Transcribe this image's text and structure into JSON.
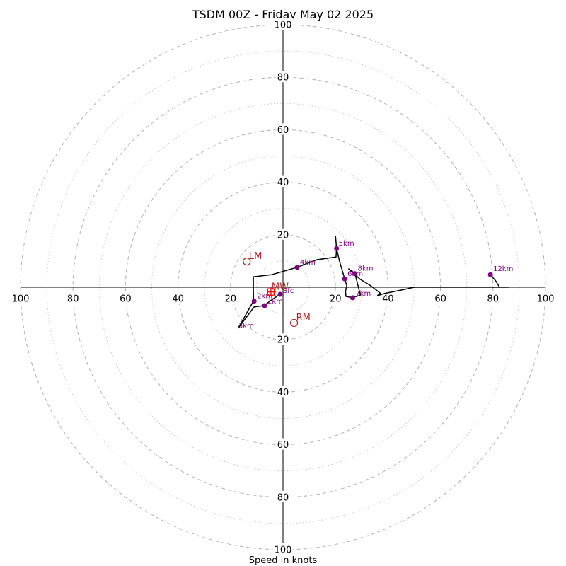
{
  "chart_data": {
    "type": "scatter",
    "title": "TSDM 00Z - Friday May 02 2025",
    "xlabel": "Speed in knots",
    "ylabel": "",
    "xlim": [
      -100,
      100
    ],
    "ylim": [
      -100,
      100
    ],
    "rings": {
      "dashed": [
        20,
        40,
        60,
        80,
        100
      ],
      "dotted": [
        10,
        30,
        50,
        70,
        90
      ]
    },
    "ticks": {
      "x": [
        {
          "v": -100,
          "label": "100"
        },
        {
          "v": -80,
          "label": "80"
        },
        {
          "v": -60,
          "label": "60"
        },
        {
          "v": -40,
          "label": "40"
        },
        {
          "v": -20,
          "label": "20"
        },
        {
          "v": 20,
          "label": "20"
        },
        {
          "v": 40,
          "label": "40"
        },
        {
          "v": 60,
          "label": "60"
        },
        {
          "v": 80,
          "label": "80"
        },
        {
          "v": 100,
          "label": "100"
        }
      ],
      "y": [
        {
          "v": 100,
          "label": "100"
        },
        {
          "v": 80,
          "label": "80"
        },
        {
          "v": 60,
          "label": "60"
        },
        {
          "v": 40,
          "label": "40"
        },
        {
          "v": 20,
          "label": "20"
        },
        {
          "v": -20,
          "label": "20"
        },
        {
          "v": -40,
          "label": "40"
        },
        {
          "v": -60,
          "label": "60"
        },
        {
          "v": -80,
          "label": "80"
        },
        {
          "v": -100,
          "label": "100"
        }
      ]
    },
    "hodograph": [
      [
        -1.1,
        -2.7
      ],
      [
        -4.3,
        -4.8
      ],
      [
        -7.2,
        -7.0
      ],
      [
        -11.0,
        -7.5
      ],
      [
        -17.0,
        -15.5
      ],
      [
        -11.2,
        -5.2
      ],
      [
        -11.3,
        -1.0
      ],
      [
        -11.3,
        4.0
      ],
      [
        -4.3,
        4.8
      ],
      [
        5.4,
        7.6
      ],
      [
        13.0,
        10.5
      ],
      [
        20.2,
        11.5
      ],
      [
        20.4,
        14.8
      ],
      [
        20.0,
        19.5
      ],
      [
        20.4,
        14.8
      ],
      [
        21.5,
        10.0
      ],
      [
        23.5,
        3.2
      ],
      [
        24.3,
        0.5
      ],
      [
        23.8,
        -1.5
      ],
      [
        24.0,
        -3.5
      ],
      [
        26.5,
        -4.0
      ],
      [
        29.5,
        -3.0
      ],
      [
        27.4,
        5.2
      ],
      [
        25.0,
        7.0
      ],
      [
        29.5,
        3.0
      ],
      [
        33.5,
        0.5
      ],
      [
        37.0,
        -2.2
      ],
      [
        36.0,
        -3.2
      ],
      [
        39.0,
        -2.3
      ],
      [
        43.0,
        -1.5
      ],
      [
        50.0,
        0.0
      ],
      [
        62.0,
        0.0
      ],
      [
        75.0,
        0.0
      ],
      [
        83.0,
        0.0
      ],
      [
        86.0,
        0.0
      ],
      [
        82.5,
        0.0
      ],
      [
        81.0,
        2.5
      ],
      [
        79.0,
        4.8
      ]
    ],
    "height_markers": [
      {
        "label": "Sfc",
        "x": -1.1,
        "y": -2.7,
        "dx": 4,
        "dy": -2
      },
      {
        "label": "1km",
        "x": -7.0,
        "y": -7.0,
        "dx": 4,
        "dy": -3
      },
      {
        "label": "2km",
        "x": -11.0,
        "y": -5.3,
        "dx": 4,
        "dy": -4
      },
      {
        "label": "3km",
        "x": -17.0,
        "y": -15.5,
        "show_point": false,
        "dx": 0,
        "dy": 0
      },
      {
        "label": "4km",
        "x": 5.4,
        "y": 7.6,
        "dx": 4,
        "dy": -4
      },
      {
        "label": "5km",
        "x": 20.4,
        "y": 14.8,
        "dx": 3,
        "dy": -4
      },
      {
        "label": "6km",
        "x": 23.5,
        "y": 3.2,
        "dx": 4,
        "dy": -4
      },
      {
        "label": "7km",
        "x": 26.5,
        "y": -4.0,
        "dx": 4,
        "dy": -3
      },
      {
        "label": "8km",
        "x": 27.4,
        "y": 5.2,
        "dx": 4,
        "dy": -4
      },
      {
        "label": "12km",
        "x": 79.0,
        "y": 4.8,
        "dx": 4,
        "dy": -5
      }
    ],
    "storm_motion": [
      {
        "label": "LM",
        "x": -13.8,
        "y": 9.8
      },
      {
        "label": "RM",
        "x": 4.2,
        "y": -13.6
      },
      {
        "label": "MW",
        "x": -4.6,
        "y": -1.8
      }
    ],
    "colors": {
      "hodograph": "#000000",
      "height_marker": "#800080",
      "storm_motion": "#b22222",
      "mean_wind": "#ff0000",
      "grid": "#b0b0b0"
    }
  }
}
